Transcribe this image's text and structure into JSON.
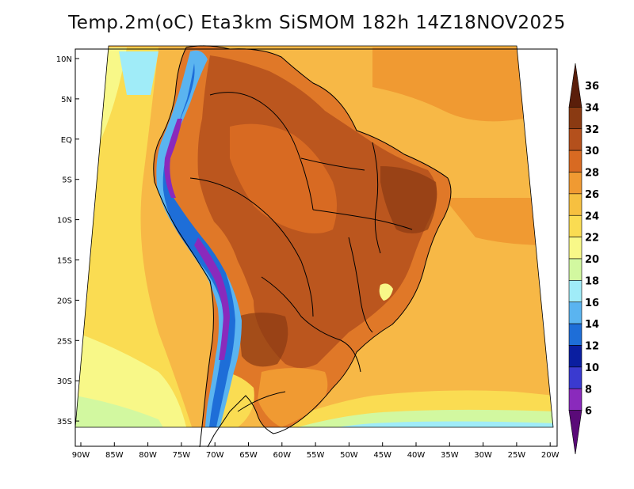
{
  "title": "Temp.2m(oC) Eta3km SiSMOM 182h 14Z18NOV2025",
  "axes": {
    "lat_labels": [
      "10N",
      "5N",
      "EQ",
      "5S",
      "10S",
      "15S",
      "20S",
      "25S",
      "30S",
      "35S"
    ],
    "lon_labels": [
      "90W",
      "85W",
      "80W",
      "75W",
      "70W",
      "65W",
      "60W",
      "55W",
      "50W",
      "45W",
      "40W",
      "35W",
      "30W",
      "25W",
      "20W"
    ]
  },
  "colorbar": {
    "labels": [
      "36",
      "34",
      "32",
      "30",
      "28",
      "26",
      "24",
      "22",
      "20",
      "18",
      "16",
      "14",
      "12",
      "10",
      "8",
      "6"
    ],
    "colors": [
      "#5a1e0a",
      "#8a3a12",
      "#b4501c",
      "#d86a22",
      "#f09a32",
      "#f6c040",
      "#fadc52",
      "#f8f888",
      "#d2f8a0",
      "#a0ecf8",
      "#5ab4f0",
      "#1e6ed8",
      "#0a1ea0",
      "#3a3ad0",
      "#8a2abc",
      "#5a0a78"
    ]
  },
  "map": {
    "ocean_color": "#f7b846",
    "land_color": "#e07828"
  }
}
